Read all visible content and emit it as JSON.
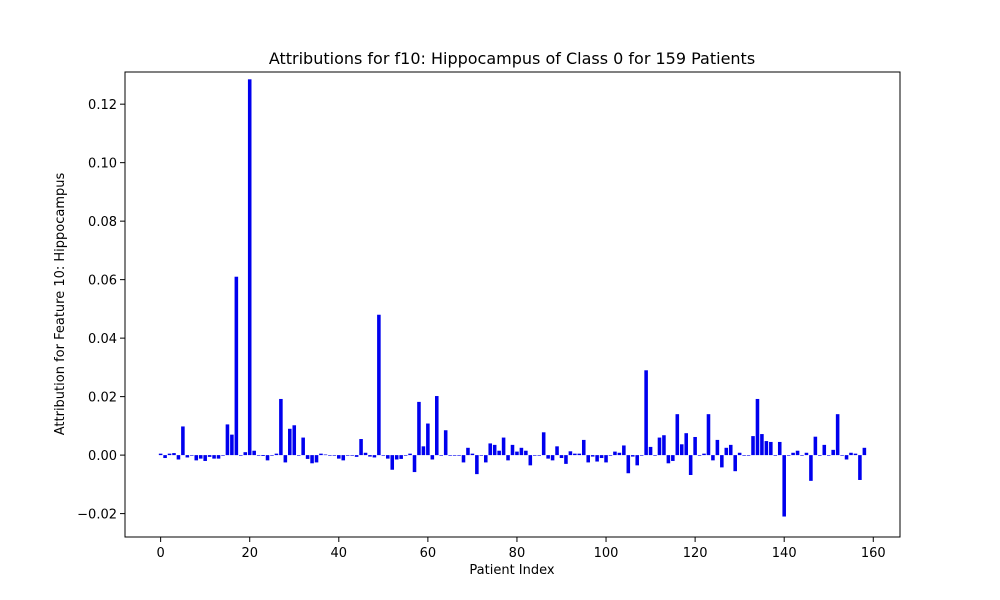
{
  "chart_data": {
    "type": "bar",
    "title": "Attributions for f10: Hippocampus of Class 0 for 159 Patients",
    "xlabel": "Patient Index",
    "ylabel": "Attribution for Feature 10: Hippocampus",
    "xlim": [
      -8,
      166
    ],
    "ylim": [
      -0.028,
      0.131
    ],
    "x_ticks": [
      0,
      20,
      40,
      60,
      80,
      100,
      120,
      140,
      160
    ],
    "y_ticks": [
      -0.02,
      0.0,
      0.02,
      0.04,
      0.06,
      0.08,
      0.1,
      0.12
    ],
    "x_tick_labels": [
      "0",
      "20",
      "40",
      "60",
      "80",
      "100",
      "120",
      "140",
      "160"
    ],
    "y_tick_labels": [
      "−0.02",
      "0.00",
      "0.02",
      "0.04",
      "0.06",
      "0.08",
      "0.10",
      "0.12"
    ],
    "bar_color": "#0000ee",
    "grid": false,
    "legend": "none",
    "x": [
      0,
      1,
      2,
      3,
      4,
      5,
      6,
      7,
      8,
      9,
      10,
      11,
      12,
      13,
      14,
      15,
      16,
      17,
      18,
      19,
      20,
      21,
      22,
      23,
      24,
      25,
      26,
      27,
      28,
      29,
      30,
      31,
      32,
      33,
      34,
      35,
      36,
      37,
      38,
      39,
      40,
      41,
      42,
      43,
      44,
      45,
      46,
      47,
      48,
      49,
      50,
      51,
      52,
      53,
      54,
      55,
      56,
      57,
      58,
      59,
      60,
      61,
      62,
      63,
      64,
      65,
      66,
      67,
      68,
      69,
      70,
      71,
      72,
      73,
      74,
      75,
      76,
      77,
      78,
      79,
      80,
      81,
      82,
      83,
      84,
      85,
      86,
      87,
      88,
      89,
      90,
      91,
      92,
      93,
      94,
      95,
      96,
      97,
      98,
      99,
      100,
      101,
      102,
      103,
      104,
      105,
      106,
      107,
      108,
      109,
      110,
      111,
      112,
      113,
      114,
      115,
      116,
      117,
      118,
      119,
      120,
      121,
      122,
      123,
      124,
      125,
      126,
      127,
      128,
      129,
      130,
      131,
      132,
      133,
      134,
      135,
      136,
      137,
      138,
      139,
      140,
      141,
      142,
      143,
      144,
      145,
      146,
      147,
      148,
      149,
      150,
      151,
      152,
      153,
      154,
      155,
      156,
      157,
      158
    ],
    "values": [
      0.0005,
      -0.001,
      0.0005,
      0.0007,
      -0.0015,
      0.0098,
      -0.0008,
      0,
      -0.0018,
      -0.0012,
      -0.002,
      -0.0006,
      -0.0012,
      -0.0012,
      0,
      0.0105,
      0.007,
      0.061,
      0,
      0.001,
      0.1285,
      0.0015,
      0,
      -0.0003,
      -0.0018,
      0,
      0.0005,
      0.0192,
      -0.0025,
      0.009,
      0.0102,
      0,
      0.006,
      -0.0013,
      -0.0028,
      -0.0025,
      0.0005,
      0.0002,
      0,
      0,
      -0.0012,
      -0.0018,
      0,
      0,
      -0.0006,
      0.0055,
      0.0008,
      -0.0005,
      -0.0008,
      0.048,
      0,
      -0.0012,
      -0.005,
      -0.0015,
      -0.0013,
      0,
      0.0005,
      -0.0058,
      0.0182,
      0.003,
      0.0108,
      -0.0015,
      0.0202,
      0,
      0.0085,
      0,
      0,
      0,
      -0.0025,
      0.0025,
      0.0005,
      -0.0065,
      0,
      -0.0025,
      0.004,
      0.0035,
      0.0015,
      0.006,
      -0.0018,
      0.0035,
      0.0012,
      0.0025,
      0.0015,
      -0.0035,
      0,
      0,
      0.0078,
      -0.0012,
      -0.0018,
      0.003,
      -0.001,
      -0.003,
      0.0013,
      0.0005,
      0.0005,
      0.0052,
      -0.0025,
      -0.0005,
      -0.0022,
      -0.001,
      -0.0025,
      0,
      0.0012,
      0.0008,
      0.0033,
      -0.0062,
      -0.0005,
      -0.0035,
      0,
      0.029,
      0.0028,
      0,
      0.006,
      0.0068,
      -0.0028,
      -0.002,
      0.014,
      0.0037,
      0.0075,
      -0.0068,
      0.0062,
      0,
      0.0005,
      0.014,
      -0.0018,
      0.0052,
      -0.0042,
      0.0025,
      0.0035,
      -0.0055,
      0.0008,
      0,
      0,
      0.0065,
      0.0192,
      0.0072,
      0.0048,
      0.0045,
      0,
      0.0045,
      -0.021,
      0,
      0.0008,
      0.0015,
      0,
      0.0008,
      -0.0088,
      0.0063,
      0,
      0.0035,
      0,
      0.0018,
      0.014,
      0,
      -0.0015,
      0.0008,
      0.0005,
      -0.0085,
      0.0025
    ]
  }
}
